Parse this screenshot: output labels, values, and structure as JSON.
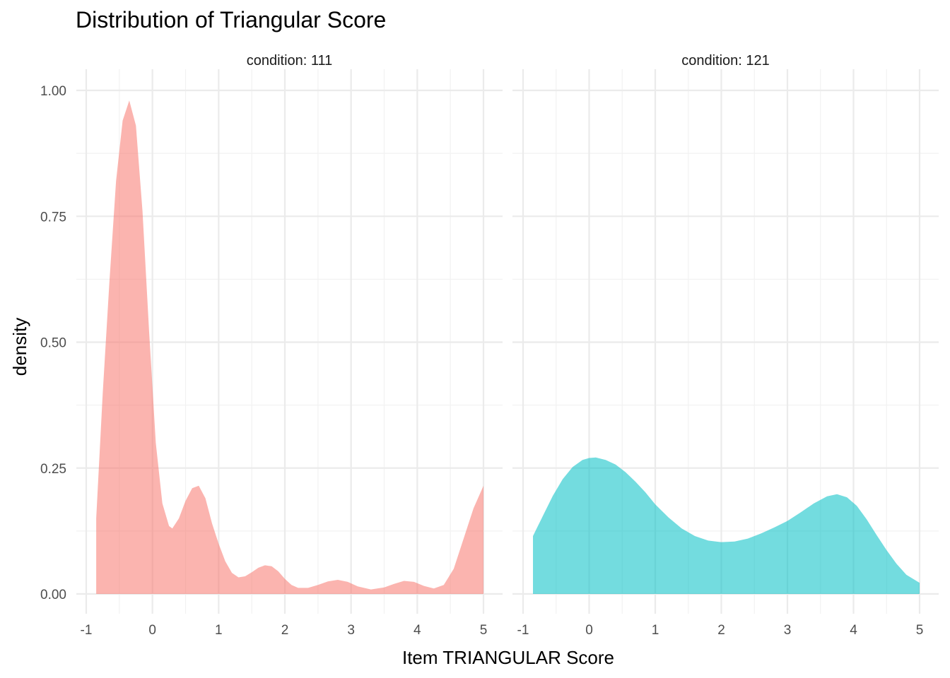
{
  "chart_data": {
    "type": "area",
    "title": "Distribution of Triangular Score",
    "xlabel": "Item TRIANGULAR Score",
    "ylabel": "density",
    "xlim": [
      -1,
      5
    ],
    "ylim": [
      0,
      1.0
    ],
    "x_ticks": [
      "-1",
      "0",
      "1",
      "2",
      "3",
      "4",
      "5"
    ],
    "y_ticks": [
      "0.00",
      "0.25",
      "0.50",
      "0.75",
      "1.00"
    ],
    "grid": true,
    "legend": "none",
    "panels": [
      {
        "label": "condition: 111",
        "color": "#F8766D",
        "points": [
          [
            -0.85,
            0.15
          ],
          [
            -0.75,
            0.4
          ],
          [
            -0.65,
            0.62
          ],
          [
            -0.55,
            0.82
          ],
          [
            -0.45,
            0.94
          ],
          [
            -0.35,
            0.98
          ],
          [
            -0.25,
            0.93
          ],
          [
            -0.15,
            0.76
          ],
          [
            -0.05,
            0.52
          ],
          [
            0.05,
            0.3
          ],
          [
            0.15,
            0.18
          ],
          [
            0.25,
            0.135
          ],
          [
            0.3,
            0.13
          ],
          [
            0.4,
            0.15
          ],
          [
            0.5,
            0.185
          ],
          [
            0.6,
            0.21
          ],
          [
            0.7,
            0.215
          ],
          [
            0.8,
            0.19
          ],
          [
            0.9,
            0.14
          ],
          [
            1.0,
            0.1
          ],
          [
            1.1,
            0.065
          ],
          [
            1.2,
            0.042
          ],
          [
            1.3,
            0.033
          ],
          [
            1.4,
            0.035
          ],
          [
            1.5,
            0.043
          ],
          [
            1.6,
            0.052
          ],
          [
            1.7,
            0.057
          ],
          [
            1.8,
            0.055
          ],
          [
            1.9,
            0.045
          ],
          [
            2.0,
            0.03
          ],
          [
            2.1,
            0.018
          ],
          [
            2.2,
            0.012
          ],
          [
            2.35,
            0.012
          ],
          [
            2.5,
            0.018
          ],
          [
            2.65,
            0.025
          ],
          [
            2.8,
            0.028
          ],
          [
            2.95,
            0.024
          ],
          [
            3.1,
            0.015
          ],
          [
            3.3,
            0.009
          ],
          [
            3.5,
            0.013
          ],
          [
            3.65,
            0.02
          ],
          [
            3.8,
            0.026
          ],
          [
            3.95,
            0.024
          ],
          [
            4.1,
            0.016
          ],
          [
            4.25,
            0.011
          ],
          [
            4.4,
            0.018
          ],
          [
            4.55,
            0.05
          ],
          [
            4.7,
            0.11
          ],
          [
            4.85,
            0.17
          ],
          [
            5.0,
            0.215
          ]
        ]
      },
      {
        "label": "condition: 121",
        "color": "#00BFC4",
        "points": [
          [
            -0.85,
            0.115
          ],
          [
            -0.7,
            0.155
          ],
          [
            -0.55,
            0.195
          ],
          [
            -0.4,
            0.228
          ],
          [
            -0.25,
            0.252
          ],
          [
            -0.1,
            0.266
          ],
          [
            0.0,
            0.27
          ],
          [
            0.1,
            0.271
          ],
          [
            0.25,
            0.266
          ],
          [
            0.4,
            0.257
          ],
          [
            0.55,
            0.242
          ],
          [
            0.7,
            0.223
          ],
          [
            0.85,
            0.202
          ],
          [
            1.0,
            0.178
          ],
          [
            1.2,
            0.152
          ],
          [
            1.4,
            0.13
          ],
          [
            1.6,
            0.115
          ],
          [
            1.8,
            0.106
          ],
          [
            2.0,
            0.103
          ],
          [
            2.2,
            0.104
          ],
          [
            2.4,
            0.11
          ],
          [
            2.6,
            0.12
          ],
          [
            2.8,
            0.132
          ],
          [
            3.0,
            0.145
          ],
          [
            3.2,
            0.162
          ],
          [
            3.4,
            0.18
          ],
          [
            3.6,
            0.194
          ],
          [
            3.75,
            0.198
          ],
          [
            3.9,
            0.192
          ],
          [
            4.05,
            0.175
          ],
          [
            4.2,
            0.148
          ],
          [
            4.35,
            0.117
          ],
          [
            4.5,
            0.087
          ],
          [
            4.65,
            0.06
          ],
          [
            4.8,
            0.038
          ],
          [
            5.0,
            0.022
          ]
        ]
      }
    ]
  }
}
